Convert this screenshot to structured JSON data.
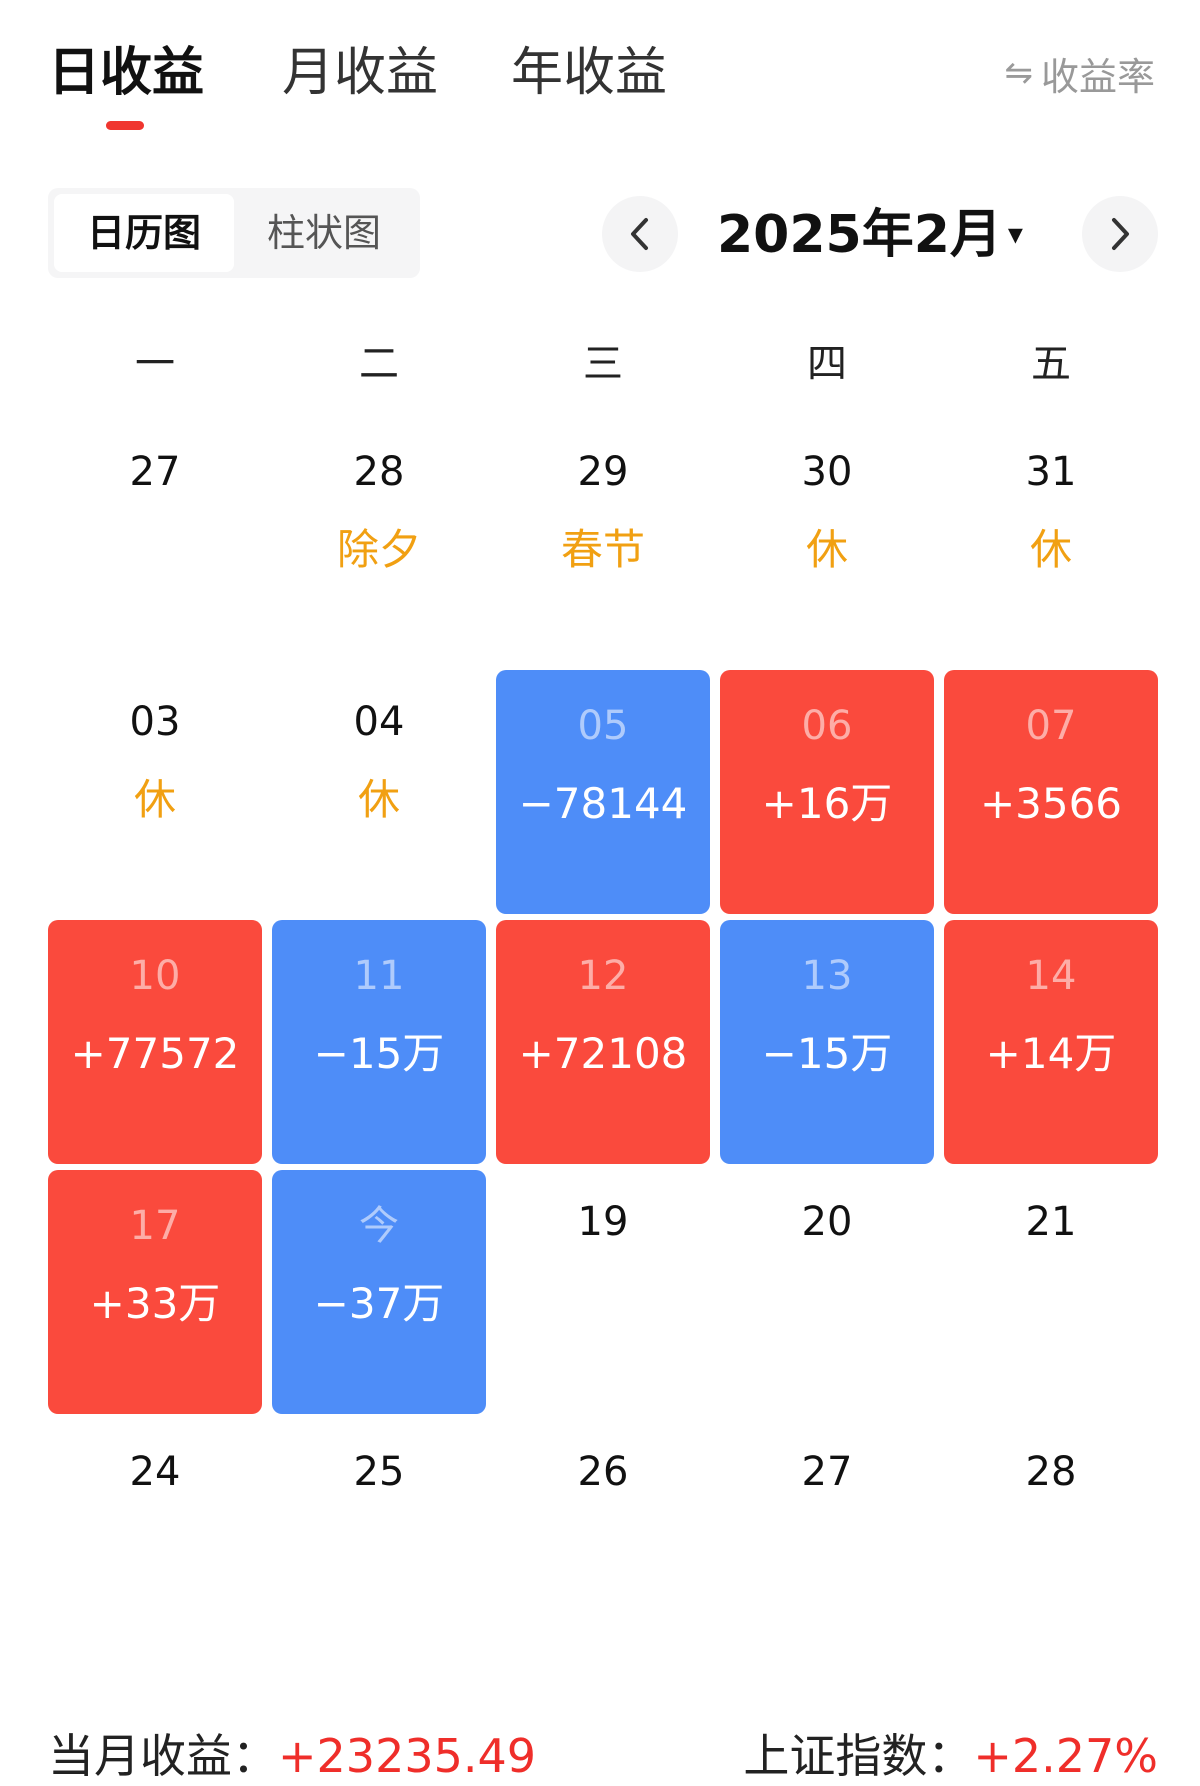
{
  "tabs": [
    {
      "label": "日收益",
      "active": true
    },
    {
      "label": "月收益",
      "active": false
    },
    {
      "label": "年收益",
      "active": false
    }
  ],
  "rate_toggle": {
    "icon": "swap-arrows-icon",
    "glyph": "⇋",
    "label": "收益率"
  },
  "view_switch": [
    {
      "label": "日历图",
      "active": true
    },
    {
      "label": "柱状图",
      "active": false
    }
  ],
  "month_nav": {
    "title": "2025年2月",
    "caret": "▾",
    "prev_icon": "chevron-left-icon",
    "next_icon": "chevron-right-icon"
  },
  "weekdays": [
    "一",
    "二",
    "三",
    "四",
    "五"
  ],
  "colors": {
    "gain": "#fa4a3d",
    "loss": "#4e8df8",
    "holiday_text": "#f1a012",
    "accent_red": "#ef2e2a"
  },
  "calendar": [
    [
      {
        "day": "27",
        "sub": "",
        "type": "plain"
      },
      {
        "day": "28",
        "sub": "除夕",
        "type": "holiday"
      },
      {
        "day": "29",
        "sub": "春节",
        "type": "holiday"
      },
      {
        "day": "30",
        "sub": "休",
        "type": "holiday"
      },
      {
        "day": "31",
        "sub": "休",
        "type": "holiday"
      }
    ],
    [
      {
        "day": "03",
        "sub": "休",
        "type": "holiday"
      },
      {
        "day": "04",
        "sub": "休",
        "type": "holiday"
      },
      {
        "day": "05",
        "sub": "−78144",
        "type": "loss"
      },
      {
        "day": "06",
        "sub": "+16万",
        "type": "gain"
      },
      {
        "day": "07",
        "sub": "+3566",
        "type": "gain"
      }
    ],
    [
      {
        "day": "10",
        "sub": "+77572",
        "type": "gain"
      },
      {
        "day": "11",
        "sub": "−15万",
        "type": "loss"
      },
      {
        "day": "12",
        "sub": "+72108",
        "type": "gain"
      },
      {
        "day": "13",
        "sub": "−15万",
        "type": "loss"
      },
      {
        "day": "14",
        "sub": "+14万",
        "type": "gain"
      }
    ],
    [
      {
        "day": "17",
        "sub": "+33万",
        "type": "gain"
      },
      {
        "day": "今",
        "sub": "−37万",
        "type": "loss"
      },
      {
        "day": "19",
        "sub": "",
        "type": "plain"
      },
      {
        "day": "20",
        "sub": "",
        "type": "plain"
      },
      {
        "day": "21",
        "sub": "",
        "type": "plain"
      }
    ],
    [
      {
        "day": "24",
        "sub": "",
        "type": "plain"
      },
      {
        "day": "25",
        "sub": "",
        "type": "plain"
      },
      {
        "day": "26",
        "sub": "",
        "type": "plain"
      },
      {
        "day": "27",
        "sub": "",
        "type": "plain"
      },
      {
        "day": "28",
        "sub": "",
        "type": "plain"
      }
    ]
  ],
  "summary": {
    "month_label": "当月收益：",
    "month_value": "+23235.49",
    "index_label": "上证指数：",
    "index_value": "+2.27%"
  }
}
